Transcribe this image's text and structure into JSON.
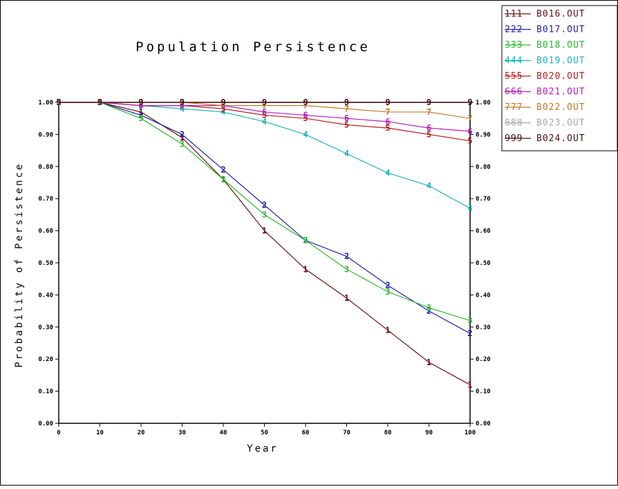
{
  "chart_data": {
    "type": "line",
    "title": "Population Persistence",
    "xlabel": "Year",
    "ylabel": "Probability of Persistence",
    "xlim": [
      0,
      100
    ],
    "ylim": [
      0,
      1
    ],
    "x": [
      0,
      10,
      20,
      30,
      40,
      50,
      60,
      70,
      80,
      90,
      100
    ],
    "x_ticks": [
      "0",
      "10",
      "20",
      "30",
      "40",
      "50",
      "60",
      "70",
      "80",
      "90",
      "100"
    ],
    "y_ticks": [
      "0.00",
      "0.10",
      "0.20",
      "0.30",
      "0.40",
      "0.50",
      "0.60",
      "0.70",
      "0.80",
      "0.90",
      "1.00"
    ],
    "legend_position": "top-right",
    "grid": false,
    "series": [
      {
        "name": "B016.OUT",
        "marker": "1",
        "legend_marks": "111",
        "color": "#6b0f0f",
        "values": [
          1.0,
          1.0,
          0.97,
          0.89,
          0.76,
          0.6,
          0.48,
          0.39,
          0.29,
          0.19,
          0.12
        ]
      },
      {
        "name": "B017.OUT",
        "marker": "2",
        "legend_marks": "222",
        "color": "#1f1fa6",
        "values": [
          1.0,
          1.0,
          0.96,
          0.9,
          0.79,
          0.68,
          0.57,
          0.52,
          0.43,
          0.35,
          0.28
        ]
      },
      {
        "name": "B018.OUT",
        "marker": "3",
        "legend_marks": "333",
        "color": "#2db82d",
        "values": [
          1.0,
          1.0,
          0.95,
          0.87,
          0.76,
          0.65,
          0.57,
          0.48,
          0.41,
          0.36,
          0.32
        ]
      },
      {
        "name": "B019.OUT",
        "marker": "4",
        "legend_marks": "444",
        "color": "#1fb3b3",
        "values": [
          1.0,
          1.0,
          0.99,
          0.98,
          0.97,
          0.94,
          0.9,
          0.84,
          0.78,
          0.74,
          0.67
        ]
      },
      {
        "name": "B020.OUT",
        "marker": "5",
        "legend_marks": "555",
        "color": "#b31f1f",
        "values": [
          1.0,
          1.0,
          0.99,
          0.99,
          0.98,
          0.96,
          0.95,
          0.93,
          0.92,
          0.9,
          0.88
        ]
      },
      {
        "name": "B021.OUT",
        "marker": "6",
        "legend_marks": "666",
        "color": "#b31fb3",
        "values": [
          1.0,
          1.0,
          0.99,
          0.99,
          0.99,
          0.97,
          0.96,
          0.95,
          0.94,
          0.92,
          0.91
        ]
      },
      {
        "name": "B022.OUT",
        "marker": "7",
        "legend_marks": "777",
        "color": "#c07a2a",
        "values": [
          1.0,
          1.0,
          1.0,
          1.0,
          0.99,
          0.99,
          0.99,
          0.98,
          0.97,
          0.97,
          0.95
        ]
      },
      {
        "name": "B023.OUT",
        "marker": "8",
        "legend_marks": "888",
        "color": "#aaaaaa",
        "values": [
          1.0,
          1.0,
          1.0,
          1.0,
          1.0,
          1.0,
          1.0,
          1.0,
          1.0,
          1.0,
          1.0
        ]
      },
      {
        "name": "B024.OUT",
        "marker": "9",
        "legend_marks": "999",
        "color": "#4a0f0f",
        "values": [
          1.0,
          1.0,
          1.0,
          1.0,
          1.0,
          1.0,
          1.0,
          1.0,
          1.0,
          1.0,
          1.0
        ]
      }
    ]
  }
}
